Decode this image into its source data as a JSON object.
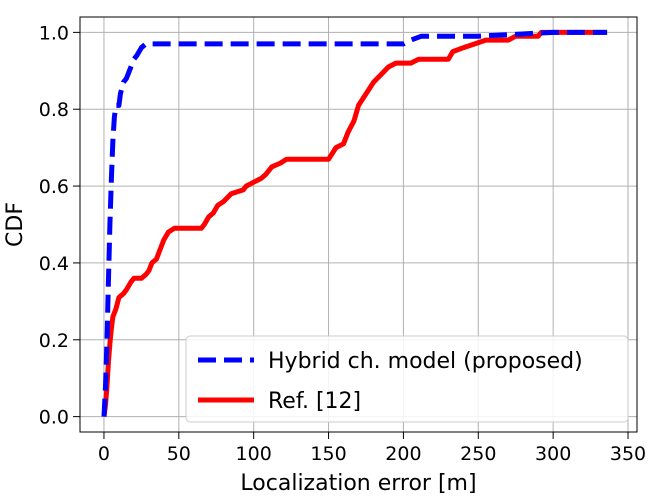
{
  "chart_data": {
    "type": "line",
    "xlabel": "Localization error [m]",
    "ylabel": "CDF",
    "xlim": [
      -16,
      356
    ],
    "ylim": [
      -0.04,
      1.04
    ],
    "xticks": [
      0,
      50,
      100,
      150,
      200,
      250,
      300,
      350
    ],
    "yticks": [
      0.0,
      0.2,
      0.4,
      0.6,
      0.8,
      1.0
    ],
    "xtick_labels": [
      "0",
      "50",
      "100",
      "150",
      "200",
      "250",
      "300",
      "350"
    ],
    "ytick_labels": [
      "0.0",
      "0.2",
      "0.4",
      "0.6",
      "0.8",
      "1.0"
    ],
    "grid": true,
    "legend_position": "bottom-right",
    "series": [
      {
        "name": "Hybrid ch. model (proposed)",
        "color": "#0000ff",
        "style": "dashed",
        "points": [
          [
            0,
            0.0
          ],
          [
            1,
            0.08
          ],
          [
            2,
            0.2
          ],
          [
            3,
            0.35
          ],
          [
            4,
            0.5
          ],
          [
            5,
            0.62
          ],
          [
            6,
            0.72
          ],
          [
            7,
            0.78
          ],
          [
            8,
            0.81
          ],
          [
            10,
            0.81
          ],
          [
            11,
            0.84
          ],
          [
            13,
            0.87
          ],
          [
            15,
            0.88
          ],
          [
            18,
            0.91
          ],
          [
            20,
            0.93
          ],
          [
            22,
            0.94
          ],
          [
            25,
            0.96
          ],
          [
            28,
            0.97
          ],
          [
            100,
            0.97
          ],
          [
            150,
            0.97
          ],
          [
            200,
            0.97
          ],
          [
            205,
            0.98
          ],
          [
            212,
            0.99
          ],
          [
            250,
            0.99
          ],
          [
            300,
            1.0
          ],
          [
            336,
            1.0
          ]
        ]
      },
      {
        "name": "Ref. [12]",
        "color": "#ff0000",
        "style": "solid",
        "points": [
          [
            0,
            0.0
          ],
          [
            1,
            0.03
          ],
          [
            2,
            0.08
          ],
          [
            3,
            0.14
          ],
          [
            4,
            0.19
          ],
          [
            5,
            0.23
          ],
          [
            6,
            0.26
          ],
          [
            8,
            0.28
          ],
          [
            10,
            0.31
          ],
          [
            13,
            0.32
          ],
          [
            15,
            0.33
          ],
          [
            18,
            0.35
          ],
          [
            20,
            0.36
          ],
          [
            25,
            0.36
          ],
          [
            28,
            0.37
          ],
          [
            30,
            0.38
          ],
          [
            32,
            0.4
          ],
          [
            35,
            0.41
          ],
          [
            37,
            0.43
          ],
          [
            40,
            0.46
          ],
          [
            43,
            0.48
          ],
          [
            47,
            0.49
          ],
          [
            65,
            0.49
          ],
          [
            67,
            0.5
          ],
          [
            70,
            0.52
          ],
          [
            73,
            0.53
          ],
          [
            76,
            0.55
          ],
          [
            80,
            0.56
          ],
          [
            85,
            0.58
          ],
          [
            93,
            0.59
          ],
          [
            95,
            0.6
          ],
          [
            100,
            0.61
          ],
          [
            105,
            0.62
          ],
          [
            108,
            0.63
          ],
          [
            112,
            0.65
          ],
          [
            118,
            0.66
          ],
          [
            122,
            0.67
          ],
          [
            150,
            0.67
          ],
          [
            155,
            0.7
          ],
          [
            160,
            0.71
          ],
          [
            163,
            0.74
          ],
          [
            167,
            0.77
          ],
          [
            170,
            0.81
          ],
          [
            175,
            0.84
          ],
          [
            180,
            0.87
          ],
          [
            185,
            0.89
          ],
          [
            190,
            0.91
          ],
          [
            195,
            0.92
          ],
          [
            205,
            0.92
          ],
          [
            210,
            0.93
          ],
          [
            230,
            0.93
          ],
          [
            233,
            0.95
          ],
          [
            240,
            0.96
          ],
          [
            255,
            0.98
          ],
          [
            270,
            0.98
          ],
          [
            275,
            0.99
          ],
          [
            290,
            0.99
          ],
          [
            292,
            1.0
          ],
          [
            336,
            1.0
          ]
        ]
      }
    ]
  }
}
